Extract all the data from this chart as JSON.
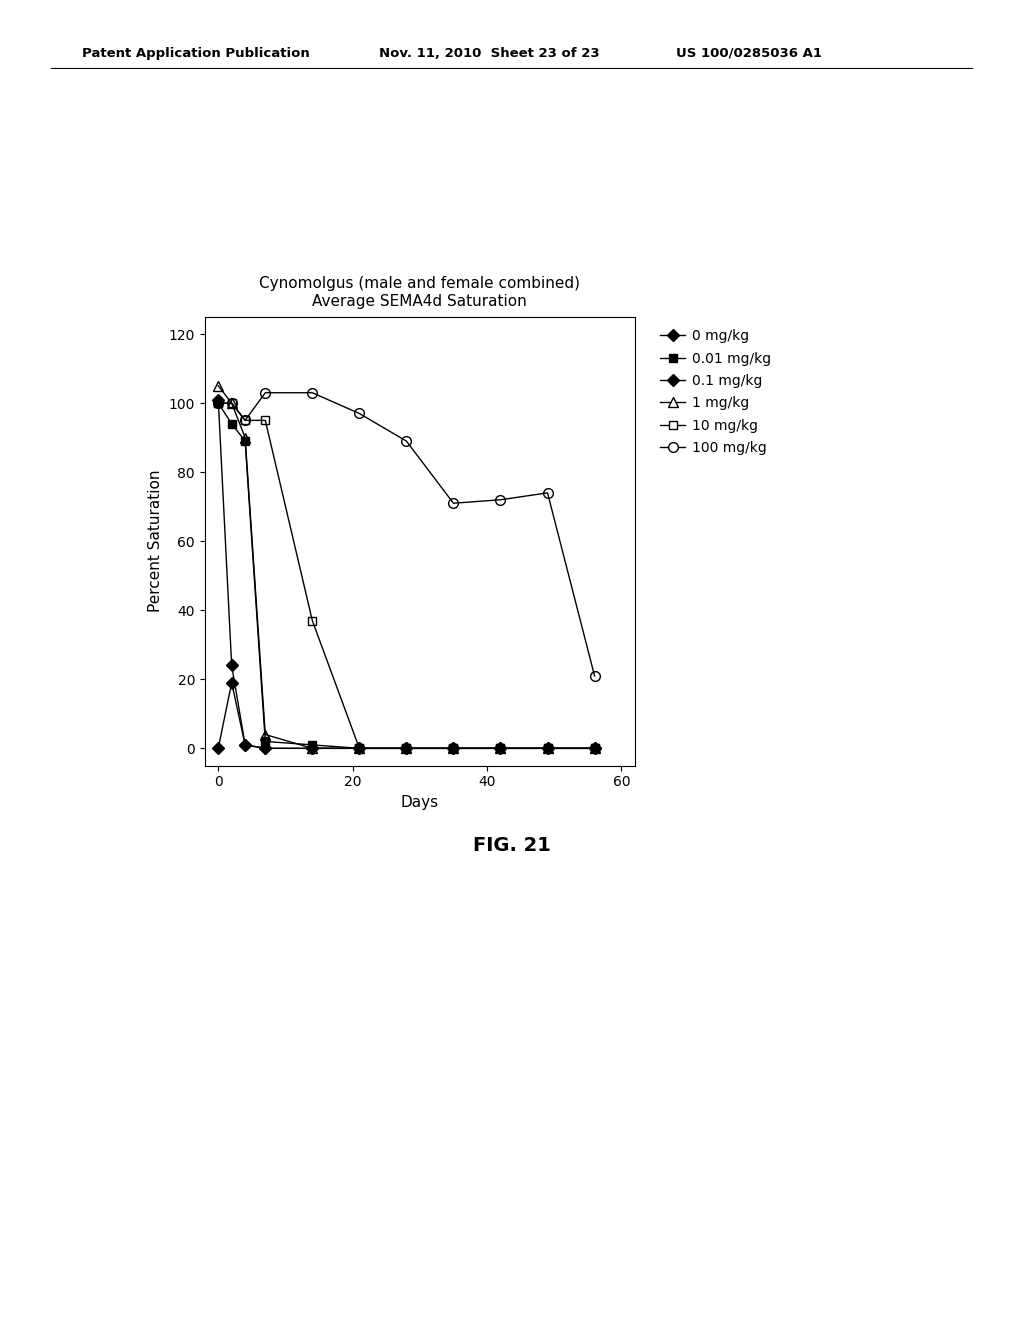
{
  "title_line1": "Cynomolgus (male and female combined)",
  "title_line2": "Average SEMA4d Saturation",
  "xlabel": "Days",
  "ylabel": "Percent Saturation",
  "xlim": [
    -2,
    62
  ],
  "ylim": [
    -5,
    125
  ],
  "xticks": [
    0,
    20,
    40,
    60
  ],
  "yticks": [
    0,
    20,
    40,
    60,
    80,
    100,
    120
  ],
  "fig_caption": "FIG. 21",
  "header_left": "Patent Application Publication",
  "header_mid": "Nov. 11, 2010  Sheet 23 of 23",
  "header_right": "US 100/0285036 A1",
  "series": [
    {
      "label": "0 mg/kg",
      "x": [
        0,
        2,
        4,
        7,
        14,
        21,
        28,
        35,
        42,
        49,
        56
      ],
      "y": [
        0,
        19,
        1,
        0,
        0,
        0,
        0,
        0,
        0,
        0,
        0
      ],
      "marker": "D",
      "markersize": 6,
      "fillstyle": "full"
    },
    {
      "label": "0.01 mg/kg",
      "x": [
        0,
        2,
        4,
        7,
        14,
        21,
        28,
        35,
        42,
        49,
        56
      ],
      "y": [
        100,
        94,
        89,
        2,
        1,
        0,
        0,
        0,
        0,
        0,
        0
      ],
      "marker": "s",
      "markersize": 6,
      "fillstyle": "full"
    },
    {
      "label": "0.1 mg/kg",
      "x": [
        0,
        2,
        4,
        7,
        14,
        21,
        28,
        35,
        42,
        49,
        56
      ],
      "y": [
        101,
        24,
        1,
        0,
        0,
        0,
        0,
        0,
        0,
        0,
        0
      ],
      "marker": "D",
      "markersize": 6,
      "fillstyle": "full"
    },
    {
      "label": "1 mg/kg",
      "x": [
        0,
        2,
        4,
        7,
        14,
        21,
        28,
        35,
        42,
        49,
        56
      ],
      "y": [
        105,
        100,
        90,
        4,
        0,
        0,
        0,
        0,
        0,
        0,
        0
      ],
      "marker": "^",
      "markersize": 7,
      "fillstyle": "none"
    },
    {
      "label": "10 mg/kg",
      "x": [
        0,
        2,
        4,
        7,
        14,
        21,
        28,
        35,
        42,
        49,
        56
      ],
      "y": [
        100,
        100,
        95,
        95,
        37,
        0,
        0,
        0,
        0,
        0,
        0
      ],
      "marker": "s",
      "markersize": 6,
      "fillstyle": "none"
    },
    {
      "label": "100 mg/kg",
      "x": [
        0,
        2,
        4,
        7,
        14,
        21,
        28,
        35,
        42,
        49,
        56
      ],
      "y": [
        100,
        100,
        95,
        103,
        103,
        97,
        89,
        71,
        72,
        74,
        21
      ],
      "marker": "o",
      "markersize": 7,
      "fillstyle": "none"
    }
  ]
}
